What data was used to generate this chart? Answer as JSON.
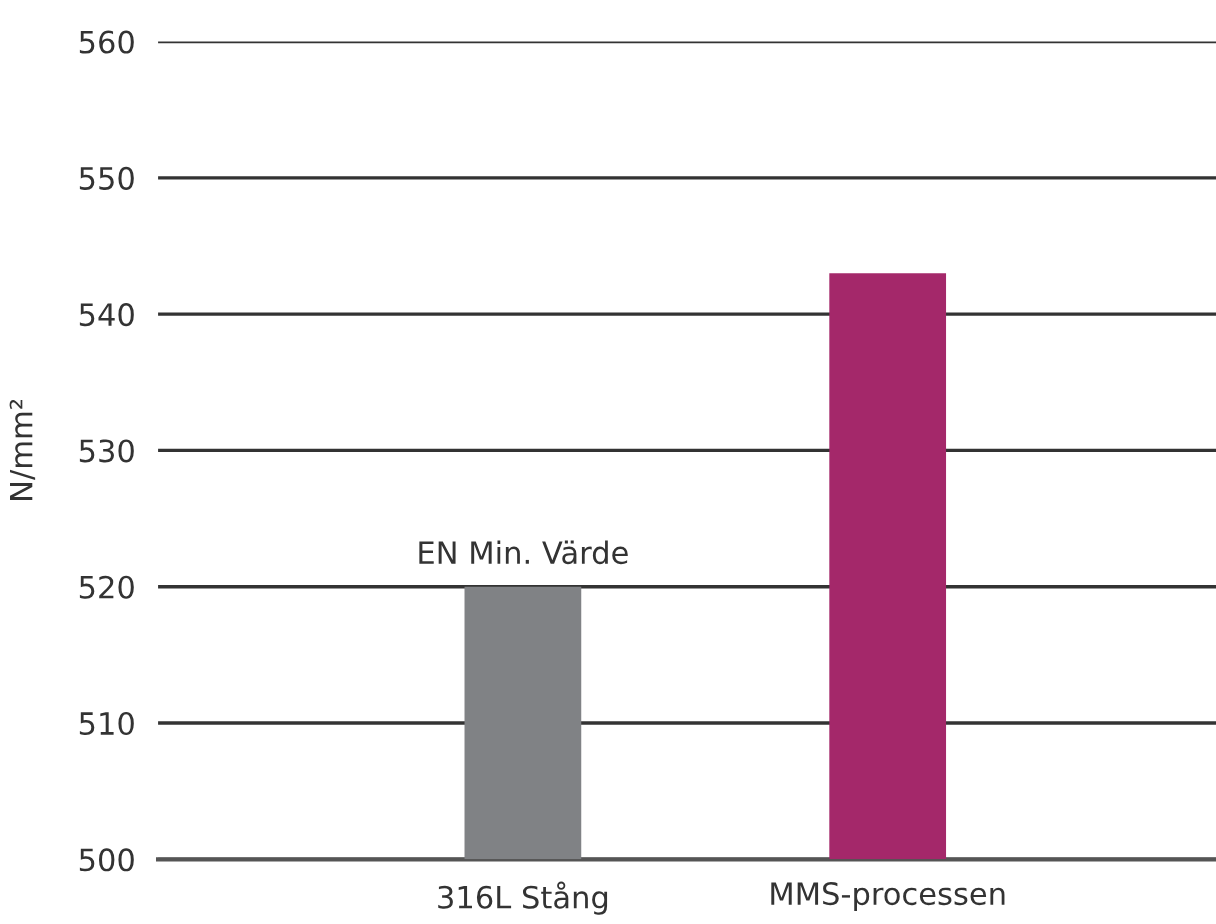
{
  "chart_data": {
    "type": "bar",
    "ylabel": "N/mm²",
    "categories": [
      "316L Stång",
      "MMS-processen"
    ],
    "values": [
      520,
      543
    ],
    "colors": [
      "#808285",
      "#a4286a"
    ],
    "ylim": [
      500,
      560
    ],
    "yticks": [
      500,
      510,
      520,
      530,
      540,
      550,
      560
    ],
    "grid": "y",
    "annotations": [
      {
        "text": "EN Min. Värde",
        "x": "316L Stång",
        "y": 520
      }
    ]
  }
}
